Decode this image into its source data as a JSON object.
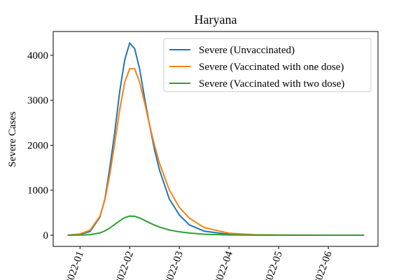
{
  "chart_data": {
    "type": "line",
    "title": "Haryana",
    "y_label": "Severe Cases",
    "x": [
      0.75,
      1.0,
      1.2,
      1.4,
      1.5,
      1.6,
      1.7,
      1.8,
      1.9,
      2.0,
      2.1,
      2.2,
      2.3,
      2.4,
      2.5,
      2.6,
      2.8,
      3.0,
      3.2,
      3.5,
      4.0,
      4.5,
      5.0,
      6.0,
      6.72
    ],
    "series": [
      {
        "name": "Severe (Unvaccinated)",
        "color": "#1f77b4",
        "values": [
          0,
          20,
          80,
          400,
          800,
          1500,
          2300,
          3200,
          3900,
          4270,
          4150,
          3700,
          3050,
          2450,
          1900,
          1450,
          800,
          450,
          230,
          90,
          20,
          5,
          2,
          0,
          0
        ]
      },
      {
        "name": "Severe (Vaccinated with one dose)",
        "color": "#ff7f0e",
        "values": [
          0,
          30,
          110,
          420,
          780,
          1350,
          2050,
          2800,
          3400,
          3700,
          3700,
          3400,
          2950,
          2450,
          2000,
          1600,
          1000,
          620,
          380,
          170,
          45,
          12,
          4,
          1,
          0
        ]
      },
      {
        "name": "Severe (Vaccinated with two dose)",
        "color": "#2ca02c",
        "values": [
          0,
          3,
          12,
          50,
          95,
          160,
          240,
          320,
          390,
          425,
          420,
          385,
          330,
          275,
          225,
          180,
          115,
          75,
          48,
          22,
          6,
          2,
          1,
          0,
          0
        ]
      }
    ],
    "xlim": [
      0.46,
      7.0
    ],
    "xticks": [
      {
        "value": 1,
        "label": "2022-01"
      },
      {
        "value": 2,
        "label": "2022-02"
      },
      {
        "value": 3,
        "label": "2022-03"
      },
      {
        "value": 4,
        "label": "2022-04"
      },
      {
        "value": 5,
        "label": "2022-05"
      },
      {
        "value": 6,
        "label": "2022-06"
      }
    ],
    "ylim": [
      -249,
      4529
    ],
    "yticks": [
      0,
      1000,
      2000,
      3000,
      4000
    ],
    "legend": "upper right"
  }
}
